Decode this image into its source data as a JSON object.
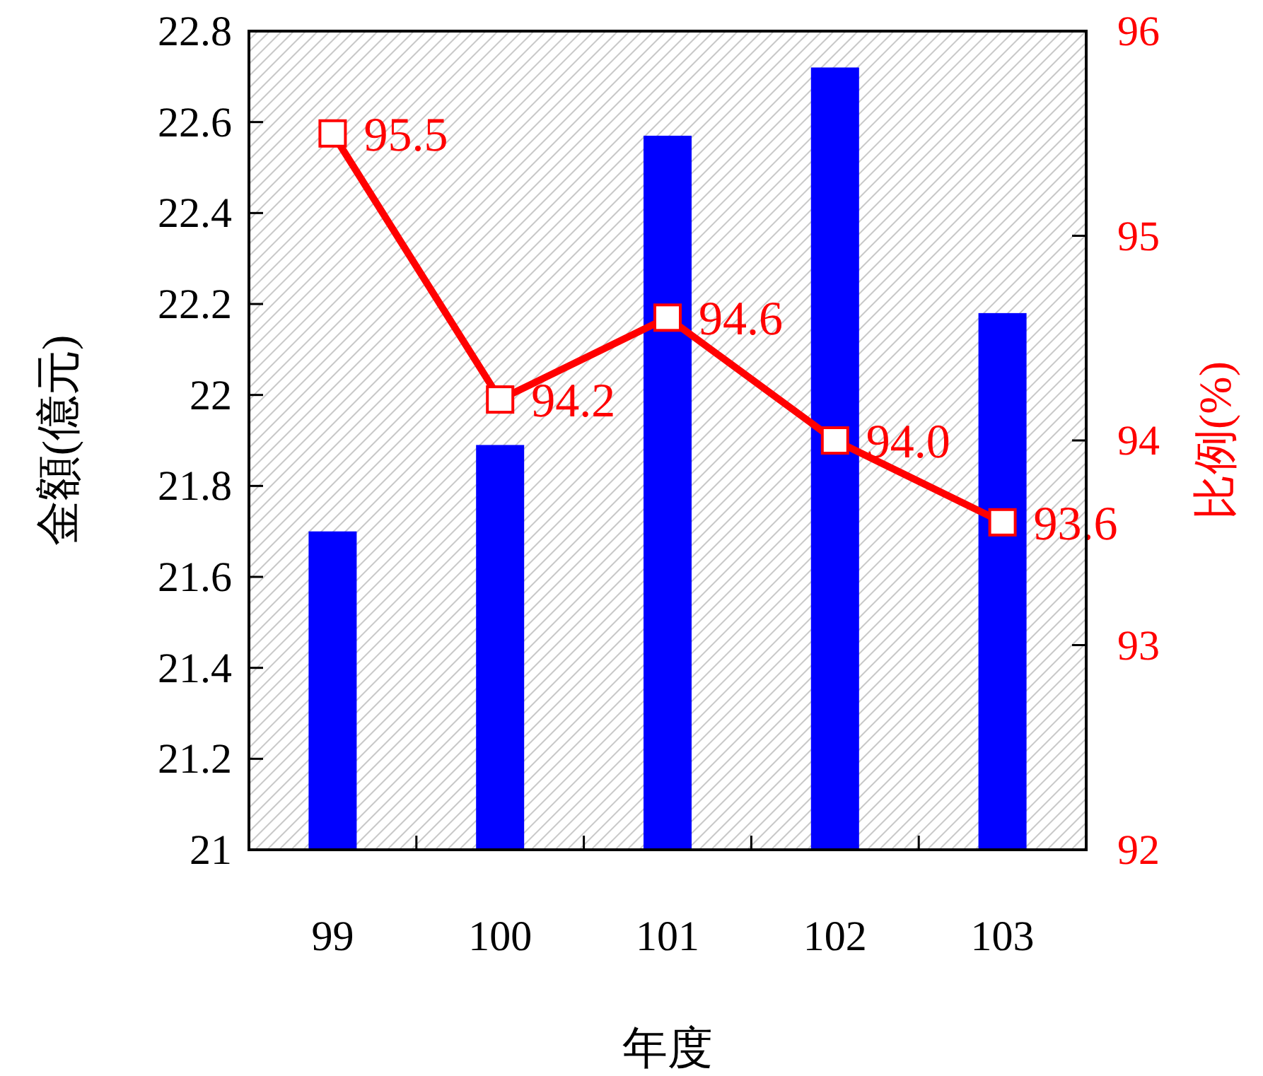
{
  "chart_data": {
    "type": "bar",
    "xlabel": "年度",
    "ylabel": "金額(億元)",
    "y2label": "比例(%)",
    "categories": [
      "99",
      "100",
      "101",
      "102",
      "103"
    ],
    "series": [
      {
        "color": "#0000ff",
        "values": [
          21.7,
          21.89,
          22.57,
          22.72,
          22.18
        ]
      },
      {
        "type": "line",
        "axis": "y2",
        "color": "#ff0000",
        "marker": "square",
        "values": [
          95.5,
          94.2,
          94.6,
          94.0,
          93.6
        ],
        "value_labels": [
          "95.5",
          "94.2",
          "94.6",
          "94.0",
          "93.6"
        ]
      }
    ],
    "ylim": [
      21,
      22.8
    ],
    "yticks": [
      21,
      21.2,
      21.4,
      21.6,
      21.8,
      22,
      22.2,
      22.4,
      22.6,
      22.8
    ],
    "y2lim": [
      92,
      96
    ],
    "y2ticks": [
      92,
      93,
      94,
      95,
      96
    ],
    "grid": false
  }
}
